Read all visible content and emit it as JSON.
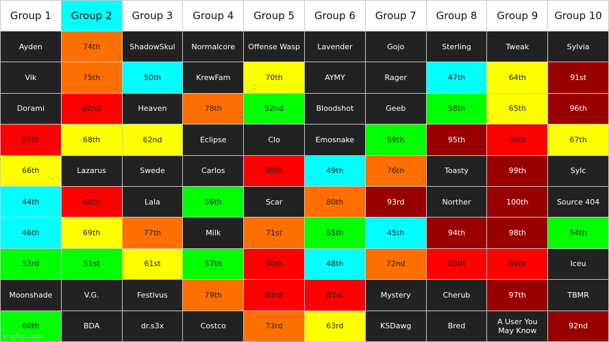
{
  "colors": {
    "dark": "#222222",
    "orange": "#ff6f00",
    "cyan": "#00ffff",
    "yellow": "#ffff00",
    "red": "#ff0000",
    "green": "#00ff00",
    "darkred": "#990000",
    "white": "#ffffff"
  },
  "headers": [
    {
      "label": "Group 1",
      "color": "white"
    },
    {
      "label": "Group 2",
      "color": "cyan"
    },
    {
      "label": "Group 3",
      "color": "white"
    },
    {
      "label": "Group 4",
      "color": "white"
    },
    {
      "label": "Group 5",
      "color": "white"
    },
    {
      "label": "Group 6",
      "color": "white"
    },
    {
      "label": "Group 7",
      "color": "white"
    },
    {
      "label": "Group 8",
      "color": "white"
    },
    {
      "label": "Group 9",
      "color": "white"
    },
    {
      "label": "Group 10",
      "color": "white"
    }
  ],
  "rows": [
    [
      {
        "text": "Ayden",
        "color": "dark"
      },
      {
        "text": "74th",
        "color": "orange"
      },
      {
        "text": "ShadowSkul",
        "color": "dark"
      },
      {
        "text": "Normalcore",
        "color": "dark"
      },
      {
        "text": "Offense Wasp",
        "color": "dark"
      },
      {
        "text": "Lavender",
        "color": "dark"
      },
      {
        "text": "Gojo",
        "color": "dark"
      },
      {
        "text": "Sterling",
        "color": "dark"
      },
      {
        "text": "Tweak",
        "color": "dark"
      },
      {
        "text": "Sylvia",
        "color": "dark"
      }
    ],
    [
      {
        "text": "Vik",
        "color": "dark"
      },
      {
        "text": "75th",
        "color": "orange"
      },
      {
        "text": "50th",
        "color": "cyan"
      },
      {
        "text": "KrewFam",
        "color": "dark"
      },
      {
        "text": "70th",
        "color": "yellow"
      },
      {
        "text": "AYMY",
        "color": "dark"
      },
      {
        "text": "Rager",
        "color": "dark"
      },
      {
        "text": "47th",
        "color": "cyan"
      },
      {
        "text": "64th",
        "color": "yellow"
      },
      {
        "text": "91st",
        "color": "darkred"
      }
    ],
    [
      {
        "text": "Dorami",
        "color": "dark"
      },
      {
        "text": "82nd",
        "color": "red"
      },
      {
        "text": "Heaven",
        "color": "dark"
      },
      {
        "text": "78th",
        "color": "orange"
      },
      {
        "text": "52nd",
        "color": "green"
      },
      {
        "text": "Bloodshot",
        "color": "dark"
      },
      {
        "text": "Geeb",
        "color": "dark"
      },
      {
        "text": "58th",
        "color": "green"
      },
      {
        "text": "65th",
        "color": "yellow"
      },
      {
        "text": "96th",
        "color": "darkred"
      }
    ],
    [
      {
        "text": "87th",
        "color": "red"
      },
      {
        "text": "68th",
        "color": "yellow"
      },
      {
        "text": "62nd",
        "color": "yellow"
      },
      {
        "text": "Eclipse",
        "color": "dark"
      },
      {
        "text": "Clo",
        "color": "dark"
      },
      {
        "text": "Emosnake",
        "color": "dark"
      },
      {
        "text": "59th",
        "color": "green"
      },
      {
        "text": "95th",
        "color": "darkred"
      },
      {
        "text": "86th",
        "color": "red"
      },
      {
        "text": "67th",
        "color": "yellow"
      }
    ],
    [
      {
        "text": "66th",
        "color": "yellow"
      },
      {
        "text": "Lazarus",
        "color": "dark"
      },
      {
        "text": "Swede",
        "color": "dark"
      },
      {
        "text": "Carlos",
        "color": "dark"
      },
      {
        "text": "89th",
        "color": "red"
      },
      {
        "text": "49th",
        "color": "cyan"
      },
      {
        "text": "76th",
        "color": "orange"
      },
      {
        "text": "Toasty",
        "color": "dark"
      },
      {
        "text": "99th",
        "color": "darkred"
      },
      {
        "text": "Sylc",
        "color": "dark"
      }
    ],
    [
      {
        "text": "44th",
        "color": "cyan"
      },
      {
        "text": "88th",
        "color": "red"
      },
      {
        "text": "Lala",
        "color": "dark"
      },
      {
        "text": "56th",
        "color": "green"
      },
      {
        "text": "Scar",
        "color": "dark"
      },
      {
        "text": "80th",
        "color": "orange"
      },
      {
        "text": "93rd",
        "color": "darkred"
      },
      {
        "text": "Norther",
        "color": "dark"
      },
      {
        "text": "100th",
        "color": "darkred"
      },
      {
        "text": "Source 404",
        "color": "dark"
      }
    ],
    [
      {
        "text": "46th",
        "color": "cyan"
      },
      {
        "text": "69th",
        "color": "yellow"
      },
      {
        "text": "77th",
        "color": "orange"
      },
      {
        "text": "Milk",
        "color": "dark"
      },
      {
        "text": "71st",
        "color": "orange"
      },
      {
        "text": "55th",
        "color": "green"
      },
      {
        "text": "45th",
        "color": "cyan"
      },
      {
        "text": "94th",
        "color": "darkred"
      },
      {
        "text": "98th",
        "color": "darkred"
      },
      {
        "text": "54th",
        "color": "green"
      }
    ],
    [
      {
        "text": "53rd",
        "color": "green"
      },
      {
        "text": "51st",
        "color": "green"
      },
      {
        "text": "61st",
        "color": "yellow"
      },
      {
        "text": "57th",
        "color": "green"
      },
      {
        "text": "90th",
        "color": "red"
      },
      {
        "text": "48th",
        "color": "cyan"
      },
      {
        "text": "72nd",
        "color": "orange"
      },
      {
        "text": "85th",
        "color": "red"
      },
      {
        "text": "84th",
        "color": "red"
      },
      {
        "text": "Iceu",
        "color": "dark"
      }
    ],
    [
      {
        "text": "Moonshade",
        "color": "dark"
      },
      {
        "text": "V.G.",
        "color": "dark"
      },
      {
        "text": "Festivus",
        "color": "dark"
      },
      {
        "text": "79th",
        "color": "orange"
      },
      {
        "text": "83rd",
        "color": "red"
      },
      {
        "text": "81st",
        "color": "red"
      },
      {
        "text": "Mystery",
        "color": "dark"
      },
      {
        "text": "Cherub",
        "color": "dark"
      },
      {
        "text": "97th",
        "color": "darkred"
      },
      {
        "text": "TBMR",
        "color": "dark"
      }
    ],
    [
      {
        "text": "60th",
        "color": "green"
      },
      {
        "text": "BDA",
        "color": "dark"
      },
      {
        "text": "dr.s3x",
        "color": "dark"
      },
      {
        "text": "Costco",
        "color": "dark"
      },
      {
        "text": "73rd",
        "color": "orange"
      },
      {
        "text": "63rd",
        "color": "yellow"
      },
      {
        "text": "KSDawg",
        "color": "dark"
      },
      {
        "text": "Bred",
        "color": "dark"
      },
      {
        "text": "A User You May Know",
        "color": "dark"
      },
      {
        "text": "92nd",
        "color": "darkred"
      }
    ]
  ],
  "watermark": "imgflip.com"
}
